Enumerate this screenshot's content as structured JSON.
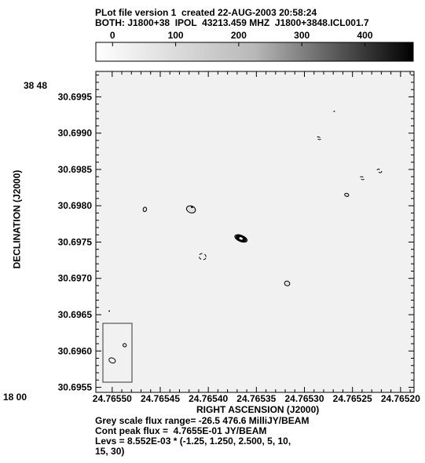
{
  "header": {
    "line1": "PLot file version 1  created 22-AUG-2003 20:58:24",
    "line2": "BOTH: J1800+38  IPOL  43213.459 MHZ  J1800+3848.ICL001.7"
  },
  "colorbar": {
    "ticks": [
      "0",
      "100",
      "200",
      "300",
      "400"
    ],
    "tick_values": [
      0,
      100,
      200,
      300,
      400
    ],
    "range": [
      -26.5,
      476.6
    ]
  },
  "footer": {
    "line1": "Grey scale flux range= -26.5 476.6 MilliJY/BEAM",
    "line2": "Cont peak flux =  4.7655E-01 JY/BEAM",
    "line3": "Levs = 8.552E-03 * (-1.25, 1.250, 2.500, 5, 10,",
    "line4": "15, 30)"
  },
  "chart_data": {
    "type": "contour",
    "title": "",
    "xlabel": "RIGHT ASCENSION (J2000)",
    "ylabel": "DECLINATION (J2000)",
    "x_prefix": "18 00",
    "y_prefix": "38 48",
    "xticks": [
      "24.76550",
      "24.76545",
      "24.76540",
      "24.76535",
      "24.76530",
      "24.76525",
      "24.76520"
    ],
    "xtick_values": [
      24.7655,
      24.76545,
      24.7654,
      24.76535,
      24.7653,
      24.76525,
      24.7652
    ],
    "yticks": [
      "30.6995",
      "30.6990",
      "30.6985",
      "30.6980",
      "30.6975",
      "30.6970",
      "30.6965",
      "30.6960",
      "30.6955"
    ],
    "ytick_values": [
      30.6995,
      30.699,
      30.6985,
      30.698,
      30.6975,
      30.697,
      30.6965,
      30.696,
      30.6955
    ],
    "xlim": [
      24.765517,
      24.765186
    ],
    "ylim": [
      30.69543,
      30.69985
    ],
    "contour_base": 0.008552,
    "contour_levels": [
      -1.25,
      1.25,
      2.5,
      5,
      10,
      15,
      30
    ],
    "peak_flux": 0.47655,
    "core": {
      "x": 24.765366,
      "y": 30.69755,
      "rx": 4.4e-06,
      "ry": 2.75e-05,
      "angle": 22
    },
    "components": [
      {
        "x": 24.765418,
        "y": 30.69795,
        "rx": 4.8e-06,
        "ry": 4.7e-05,
        "angle": 20,
        "sign": 1
      },
      {
        "x": 24.765417,
        "y": 30.69798,
        "rx": 9e-07,
        "ry": 4.5e-06,
        "angle": 0,
        "sign": 1
      },
      {
        "x": 24.765466,
        "y": 30.69795,
        "rx": 1.8e-06,
        "ry": 3.1e-05,
        "angle": 12,
        "sign": 1
      },
      {
        "x": 24.765406,
        "y": 30.6973,
        "rx": 3.7e-06,
        "ry": 4.2e-05,
        "angle": 22,
        "sign": -1
      },
      {
        "x": 24.765318,
        "y": 30.69693,
        "rx": 2.8e-06,
        "ry": 3.2e-05,
        "angle": 22,
        "sign": 1
      },
      {
        "x": 24.765285,
        "y": 30.69893,
        "rx": 2.2e-06,
        "ry": 1.6e-05,
        "angle": 25,
        "sign": -1
      },
      {
        "x": 24.765256,
        "y": 30.69815,
        "rx": 2.2e-06,
        "ry": 2.1e-05,
        "angle": 20,
        "sign": 1
      },
      {
        "x": 24.76524,
        "y": 30.69838,
        "rx": 2.2e-06,
        "ry": 1.8e-05,
        "angle": 22,
        "sign": -1
      },
      {
        "x": 24.765222,
        "y": 30.69848,
        "rx": 2.5e-06,
        "ry": 2e-05,
        "angle": 28,
        "sign": -1
      },
      {
        "x": 24.765487,
        "y": 30.69608,
        "rx": 1.8e-06,
        "ry": 2.3e-05,
        "angle": 25,
        "sign": 1
      },
      {
        "x": 24.765503,
        "y": 30.69655,
        "rx": 3e-07,
        "ry": 5e-06,
        "angle": 0,
        "sign": 1
      },
      {
        "x": 24.765269,
        "y": 30.6993,
        "rx": 5e-07,
        "ry": 2e-06,
        "angle": 0,
        "sign": 1
      }
    ],
    "beam": {
      "x": 24.7655,
      "y": 30.69587,
      "rx": 3.5e-06,
      "ry": 3.3e-05,
      "angle": 25
    },
    "colors": {
      "frame": "#000000",
      "contour": "#000000",
      "highlight": "#ffffff"
    }
  }
}
